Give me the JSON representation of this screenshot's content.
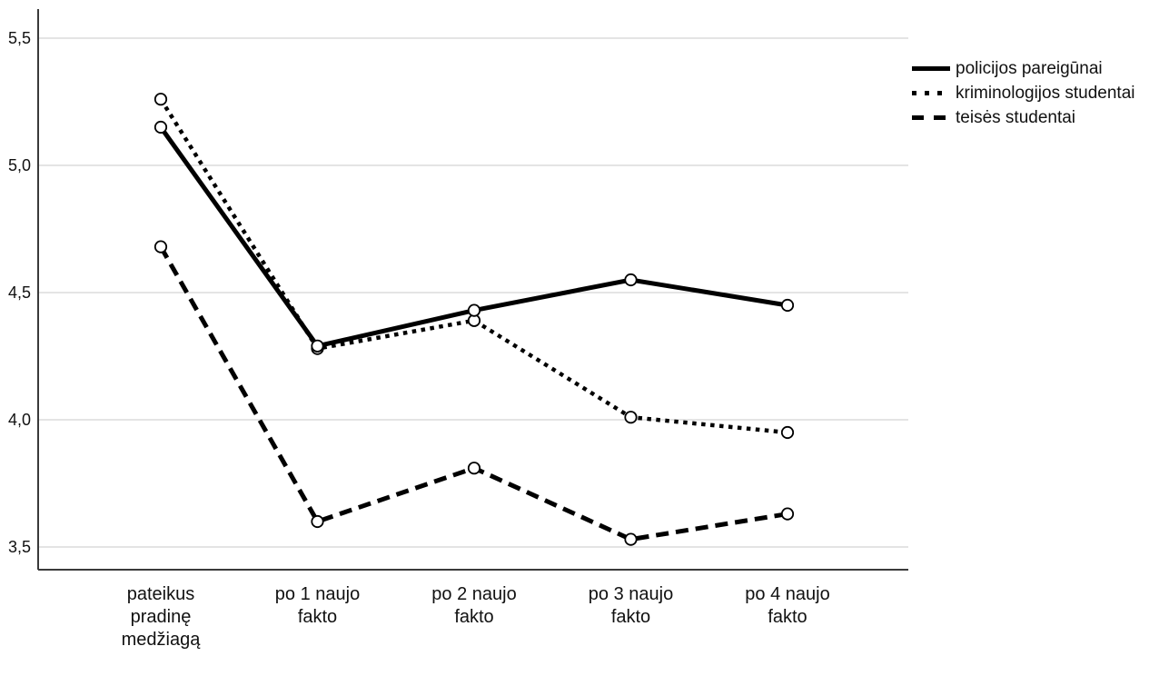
{
  "chart_data": {
    "type": "line",
    "title": "",
    "x_axis": {
      "categories": [
        {
          "label": "pateikus pradinę medžiagą",
          "lines": [
            "pateikus",
            "pradinę",
            "medžiagą"
          ]
        },
        {
          "label": "po 1 naujo fakto",
          "lines": [
            "po 1 naujo",
            "fakto"
          ]
        },
        {
          "label": "po 2 naujo fakto",
          "lines": [
            "po 2 naujo",
            "fakto"
          ]
        },
        {
          "label": "po 3 naujo fakto",
          "lines": [
            "po 3 naujo",
            "fakto"
          ]
        },
        {
          "label": "po 4 naujo fakto",
          "lines": [
            "po 4 naujo",
            "fakto"
          ]
        }
      ]
    },
    "y_axis": {
      "min": 3.41,
      "max": 5.61,
      "ticks": [
        {
          "value": 3.5,
          "label": "3,5"
        },
        {
          "value": 4.0,
          "label": "4,0"
        },
        {
          "value": 4.5,
          "label": "4,5"
        },
        {
          "value": 5.0,
          "label": "5,0"
        },
        {
          "value": 5.5,
          "label": "5,5"
        }
      ]
    },
    "series": [
      {
        "name": "policijos pareigūnai",
        "line_style": "solid",
        "values": [
          5.15,
          4.29,
          4.43,
          4.55,
          4.45
        ]
      },
      {
        "name": "kriminologijos studentai",
        "line_style": "dotted",
        "values": [
          5.26,
          4.28,
          4.39,
          4.01,
          3.95
        ]
      },
      {
        "name": "teisės studentai",
        "line_style": "dashed",
        "values": [
          4.68,
          3.6,
          3.81,
          3.53,
          3.63
        ]
      }
    ],
    "legend": {
      "position": "right",
      "entries": [
        "policijos pareigūnai",
        "kriminologijos studentai",
        "teisės studentai"
      ]
    },
    "grid": "horizontal",
    "marker": "open-circle",
    "colors": {
      "line": "#000000",
      "grid": "#c9c9c9",
      "axis": "#3a3a3a",
      "text": "#111111",
      "marker_fill": "#ffffff",
      "background": "#ffffff"
    }
  }
}
